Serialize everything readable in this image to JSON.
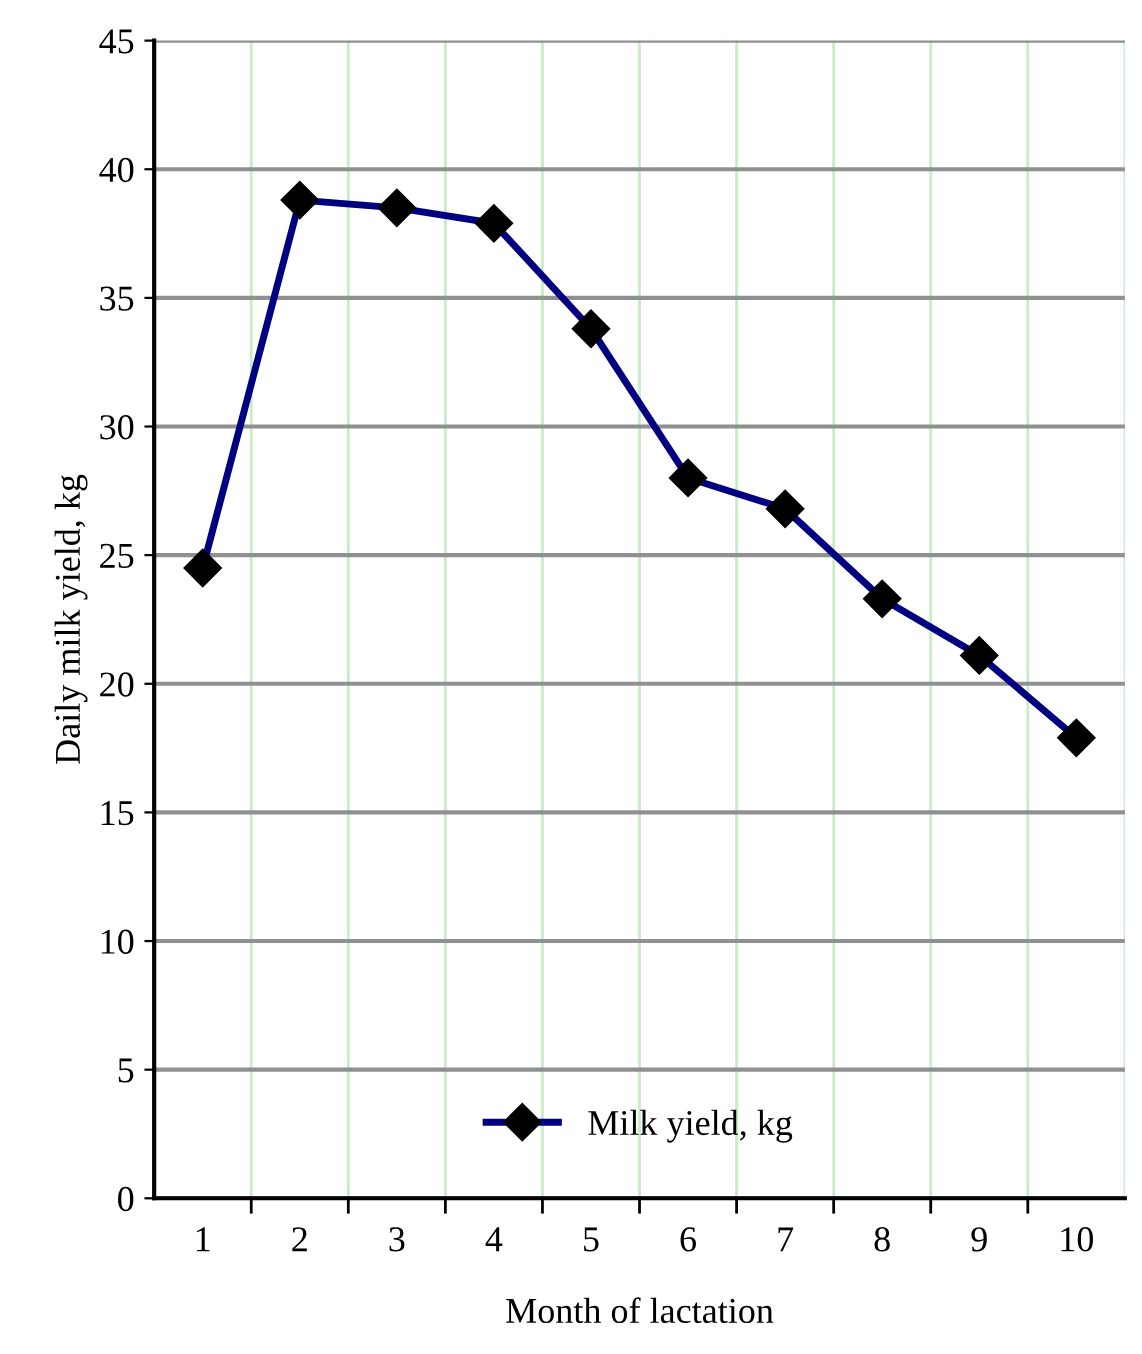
{
  "chart_data": {
    "type": "line",
    "xlabel": "Month of lactation",
    "ylabel": "Daily milk yield, kg",
    "categories": [
      "1",
      "2",
      "3",
      "4",
      "5",
      "6",
      "7",
      "8",
      "9",
      "10"
    ],
    "series": [
      {
        "name": "Milk yield, kg",
        "color": "#000080",
        "values": [
          24.5,
          38.8,
          38.5,
          37.9,
          33.8,
          28.0,
          26.8,
          23.3,
          21.1,
          17.9
        ]
      }
    ],
    "ylim": [
      0,
      45
    ],
    "yticks": [
      0,
      5,
      10,
      15,
      20,
      25,
      30,
      35,
      40,
      45
    ],
    "grid": true,
    "legend": "bottom",
    "marker": "diamond",
    "line_style": "solid"
  }
}
